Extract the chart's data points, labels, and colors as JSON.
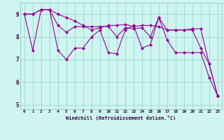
{
  "xlabel": "Windchill (Refroidissement éolien,°C)",
  "background_color": "#cef5f0",
  "line_color": "#990099",
  "grid_color": "#99cccc",
  "xlim": [
    -0.5,
    23.5
  ],
  "ylim": [
    4.8,
    9.5
  ],
  "xticks": [
    0,
    1,
    2,
    3,
    4,
    5,
    6,
    7,
    8,
    9,
    10,
    11,
    12,
    13,
    14,
    15,
    16,
    17,
    18,
    19,
    20,
    21,
    22,
    23
  ],
  "yticks": [
    5,
    6,
    7,
    8,
    9
  ],
  "series": [
    [
      9.0,
      7.4,
      9.2,
      9.2,
      7.4,
      7.0,
      7.5,
      7.5,
      8.0,
      8.3,
      7.3,
      7.25,
      8.3,
      8.5,
      7.5,
      7.65,
      8.85,
      7.85,
      7.3,
      7.3,
      7.3,
      7.3,
      6.2,
      5.4
    ],
    [
      9.0,
      9.0,
      9.2,
      9.2,
      9.0,
      8.85,
      8.7,
      8.5,
      8.3,
      8.4,
      8.5,
      8.5,
      8.55,
      8.45,
      8.5,
      8.5,
      8.45,
      8.3,
      8.3,
      8.3,
      8.35,
      8.35,
      6.8,
      5.4
    ],
    [
      9.0,
      9.0,
      9.2,
      9.2,
      8.5,
      8.2,
      8.45,
      8.45,
      8.45,
      8.45,
      8.45,
      8.0,
      8.4,
      8.35,
      8.4,
      8.0,
      8.85,
      8.3,
      8.3,
      8.3,
      8.3,
      7.5,
      6.8,
      5.4
    ]
  ]
}
